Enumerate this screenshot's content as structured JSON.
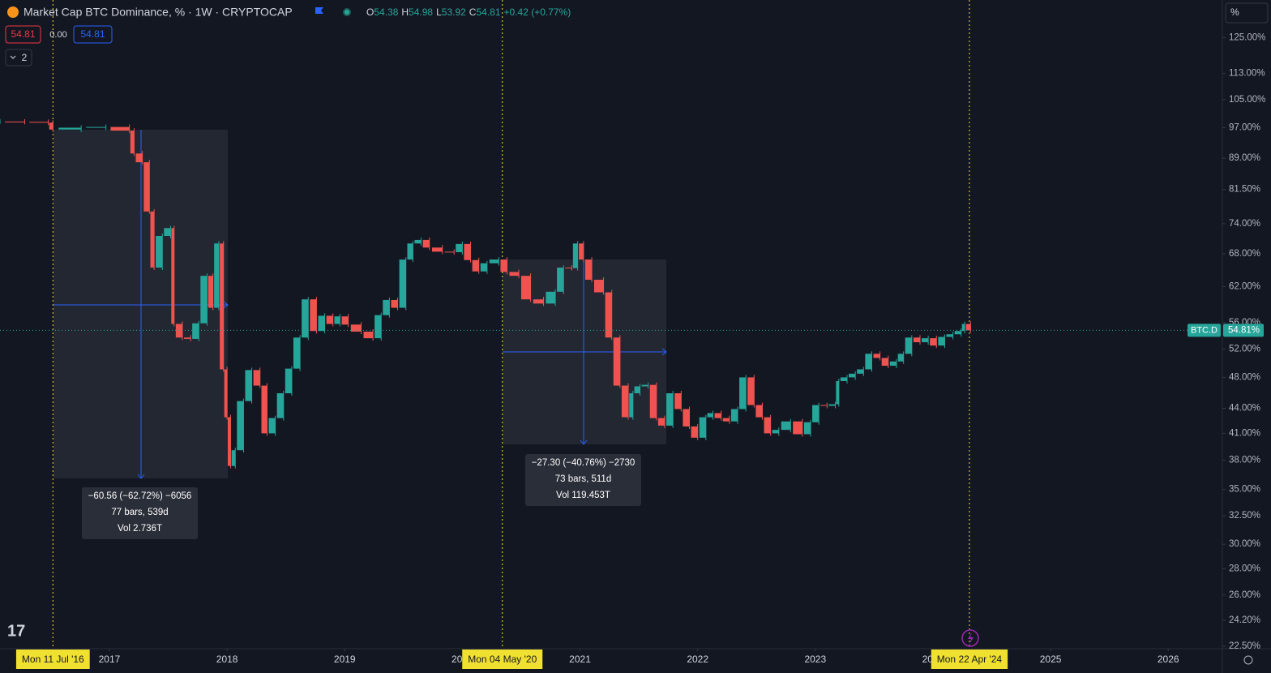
{
  "header": {
    "title": "Market Cap BTC Dominance, % · 1W · CRYPTOCAP",
    "ohlc": [
      {
        "label": "O",
        "value": "54.38"
      },
      {
        "label": "H",
        "value": "54.98"
      },
      {
        "label": "L",
        "value": "53.92"
      },
      {
        "label": "C",
        "value": "54.81"
      }
    ],
    "change": "+0.42 (+0.77%)",
    "bid": "54.81",
    "spread": "0.00",
    "ask": "54.81",
    "indicators": "2",
    "scale_mode": "%"
  },
  "chart_data": {
    "type": "candlestick",
    "symbol": "BTC.D",
    "last_price_label": "54.81%",
    "last_price": 54.81,
    "log_scale": true,
    "grid": false,
    "up_color": "#26a69a",
    "down_color": "#ef5350",
    "xlim": [
      2016.07,
      2026.46
    ],
    "ylim": [
      22.35,
      139
    ],
    "xticks": [
      2017,
      2018,
      2019,
      2020,
      2021,
      2022,
      2023,
      2024,
      2025,
      2026
    ],
    "yticks": [
      {
        "value": 125,
        "label": "125.00%"
      },
      {
        "value": 113,
        "label": "113.00%"
      },
      {
        "value": 105,
        "label": "105.00%"
      },
      {
        "value": 97,
        "label": "97.00%"
      },
      {
        "value": 89,
        "label": "89.00%"
      },
      {
        "value": 81.5,
        "label": "81.50%"
      },
      {
        "value": 74,
        "label": "74.00%"
      },
      {
        "value": 68,
        "label": "68.00%"
      },
      {
        "value": 62,
        "label": "62.00%"
      },
      {
        "value": 56,
        "label": "56.00%"
      },
      {
        "value": 52,
        "label": "52.00%"
      },
      {
        "value": 48,
        "label": "48.00%"
      },
      {
        "value": 44,
        "label": "44.00%"
      },
      {
        "value": 41,
        "label": "41.00%"
      },
      {
        "value": 38,
        "label": "38.00%"
      },
      {
        "value": 35,
        "label": "35.00%"
      },
      {
        "value": 32.5,
        "label": "32.50%"
      },
      {
        "value": 30,
        "label": "30.00%"
      },
      {
        "value": 28,
        "label": "28.00%"
      },
      {
        "value": 26,
        "label": "26.00%"
      },
      {
        "value": 24.2,
        "label": "24.20%"
      },
      {
        "value": 22.5,
        "label": "22.50%"
      }
    ],
    "markers": [
      {
        "x": 2016.52,
        "label": "Mon 11 Jul '16"
      },
      {
        "x": 2020.34,
        "label": "Mon 04 May '20"
      },
      {
        "x": 2024.31,
        "label": "Mon 22 Apr '24"
      }
    ],
    "measures": [
      {
        "lines": [
          "−60.56 (−62.72%) −6056",
          "77 bars, 539d",
          "Vol 2.736T"
        ]
      },
      {
        "lines": [
          "−27.30 (−40.76%) −2730",
          "73 bars, 511d",
          "Vol 119.453T"
        ]
      }
    ],
    "x": [
      2016.07,
      2016.28,
      2016.48,
      2016.52,
      2016.76,
      2016.97,
      2017.17,
      2017.21,
      2017.28,
      2017.34,
      2017.38,
      2017.45,
      2017.52,
      2017.55,
      2017.62,
      2017.69,
      2017.76,
      2017.83,
      2017.88,
      2017.93,
      2017.97,
      2018.0,
      2018.03,
      2018.07,
      2018.14,
      2018.21,
      2018.28,
      2018.34,
      2018.41,
      2018.48,
      2018.55,
      2018.62,
      2018.69,
      2018.76,
      2018.83,
      2018.9,
      2018.96,
      2019.03,
      2019.14,
      2019.24,
      2019.31,
      2019.38,
      2019.45,
      2019.52,
      2019.58,
      2019.65,
      2019.72,
      2019.83,
      2019.93,
      2020.0,
      2020.07,
      2020.14,
      2020.21,
      2020.31,
      2020.38,
      2020.48,
      2020.58,
      2020.69,
      2020.79,
      2020.86,
      2020.93,
      2020.98,
      2021.03,
      2021.1,
      2021.2,
      2021.27,
      2021.34,
      2021.41,
      2021.45,
      2021.51,
      2021.58,
      2021.65,
      2021.72,
      2021.79,
      2021.86,
      2021.93,
      2022.0,
      2022.07,
      2022.13,
      2022.2,
      2022.27,
      2022.34,
      2022.41,
      2022.48,
      2022.55,
      2022.62,
      2022.69,
      2022.79,
      2022.89,
      2022.96,
      2023.03,
      2023.1,
      2023.17,
      2023.2,
      2023.27,
      2023.34,
      2023.41,
      2023.48,
      2023.55,
      2023.62,
      2023.69,
      2023.75,
      2023.82,
      2023.89,
      2023.96,
      2024.03,
      2024.1,
      2024.17,
      2024.24,
      2024.27,
      2024.32
    ],
    "values": [
      98.7,
      98.6,
      98.4,
      96.5,
      97.0,
      97.2,
      96.2,
      90.2,
      88.0,
      76.6,
      65.4,
      71.5,
      73.1,
      55.8,
      53.7,
      53.5,
      55.9,
      63.9,
      58.4,
      70.0,
      49.1,
      42.9,
      37.4,
      39.1,
      44.9,
      49.0,
      46.9,
      41.0,
      42.8,
      45.9,
      49.2,
      53.7,
      59.8,
      54.7,
      57.1,
      55.8,
      57.0,
      55.7,
      54.6,
      53.6,
      57.2,
      59.7,
      58.4,
      66.9,
      70.0,
      70.7,
      69.2,
      68.4,
      68.3,
      69.9,
      66.8,
      64.7,
      66.2,
      66.9,
      64.6,
      63.9,
      59.8,
      59.1,
      61.1,
      65.4,
      65.3,
      70.0,
      66.9,
      63.2,
      61.0,
      53.7,
      46.9,
      42.9,
      45.9,
      46.8,
      47.0,
      42.8,
      41.9,
      45.9,
      43.9,
      41.8,
      40.5,
      42.9,
      43.4,
      42.8,
      42.4,
      43.9,
      48.0,
      44.4,
      42.9,
      41.0,
      41.4,
      42.4,
      40.9,
      42.3,
      44.4,
      44.3,
      44.5,
      47.5,
      48.0,
      48.5,
      49.1,
      51.3,
      50.7,
      49.6,
      50.2,
      51.3,
      53.7,
      53.0,
      53.6,
      52.5,
      53.8,
      54.2,
      54.7,
      55.8,
      54.81
    ]
  }
}
